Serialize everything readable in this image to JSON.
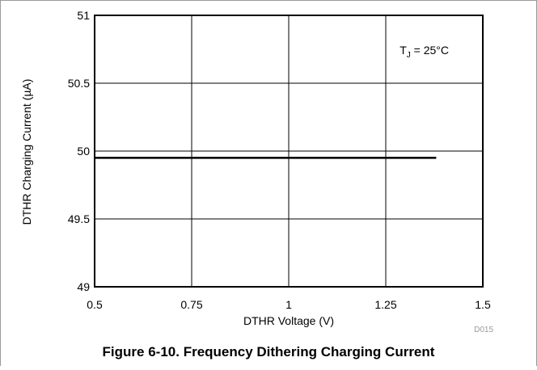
{
  "chart_data": {
    "type": "line",
    "xlabel": "DTHR Voltage (V)",
    "ylabel": "DTHR Charging Current (µA)",
    "xlim": [
      0.5,
      1.5
    ],
    "ylim": [
      49,
      51
    ],
    "x_ticks": [
      "0.5",
      "0.75",
      "1",
      "1.25",
      "1.5"
    ],
    "y_ticks": [
      "51",
      "50.5",
      "50",
      "49.5",
      "49"
    ],
    "grid": true,
    "series": [
      {
        "x": [
          0.5,
          1.38
        ],
        "y": [
          49.95,
          49.95
        ]
      }
    ],
    "annotation": {
      "main": "T",
      "sub": "J",
      "rest": " = 25°C"
    },
    "figure_code": "D015",
    "caption": "Figure 6-10. Frequency Dithering Charging Current",
    "colors": {
      "line": "#000000",
      "grid": "#000000",
      "frame": "#9a9a9a"
    }
  }
}
